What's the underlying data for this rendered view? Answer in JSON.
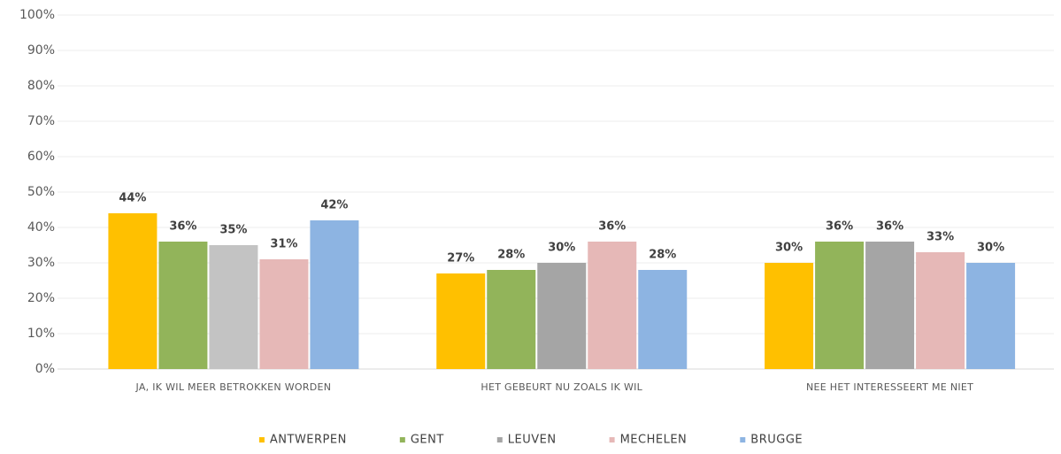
{
  "chart_data": {
    "type": "bar",
    "categories": [
      "JA, IK WIL MEER BETROKKEN WORDEN",
      "HET GEBEURT NU ZOALS IK WIL",
      "NEE HET INTERESSEERT ME NIET"
    ],
    "series": [
      {
        "name": "ANTWERPEN",
        "color": "#ffc000",
        "values": [
          44,
          27,
          30
        ],
        "value_labels": [
          "44%",
          "27%",
          "30%"
        ]
      },
      {
        "name": "GENT",
        "color": "#92b45a",
        "values": [
          36,
          28,
          36
        ],
        "value_labels": [
          "36%",
          "28%",
          "36%"
        ]
      },
      {
        "name": "LEUVEN",
        "color": "#a5a5a5",
        "colors": [
          "#c3c3c3",
          "#a5a5a5",
          "#a5a5a5"
        ],
        "values": [
          35,
          30,
          36
        ],
        "value_labels": [
          "35%",
          "30%",
          "36%"
        ]
      },
      {
        "name": "MECHELEN",
        "color": "#e6b8b7",
        "values": [
          31,
          36,
          33
        ],
        "value_labels": [
          "31%",
          "36%",
          "33%"
        ]
      },
      {
        "name": "BRUGGE",
        "color": "#8db4e2",
        "values": [
          42,
          28,
          30
        ],
        "value_labels": [
          "42%",
          "28%",
          "30%"
        ]
      }
    ],
    "ylim": [
      0,
      100
    ],
    "yticks": [
      {
        "value": 0,
        "label": "0%"
      },
      {
        "value": 10,
        "label": "10%"
      },
      {
        "value": 20,
        "label": "20%"
      },
      {
        "value": 30,
        "label": "30%"
      },
      {
        "value": 40,
        "label": "40%"
      },
      {
        "value": 50,
        "label": "50%"
      },
      {
        "value": 60,
        "label": "60%"
      },
      {
        "value": 70,
        "label": "70%"
      },
      {
        "value": 80,
        "label": "80%"
      },
      {
        "value": 90,
        "label": "90%"
      },
      {
        "value": 100,
        "label": "100%"
      }
    ],
    "grid": true,
    "legend": "bottom"
  }
}
